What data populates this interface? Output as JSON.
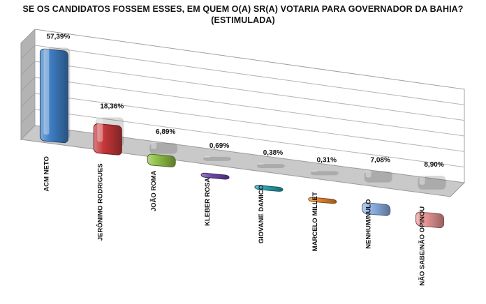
{
  "chart_data": {
    "type": "bar",
    "title": "SE OS CANDIDATOS FOSSEM ESSES, EM QUEM O(A) SR(A) VOTARIA PARA GOVERNADOR DA BAHIA?",
    "subtitle": "(ESTIMULADA)",
    "categories": [
      "ACM NETO",
      "JERÔNIMO RODRIGUES",
      "JOÃO ROMA",
      "KLEBER ROSA",
      "GIOVANE DAMICO",
      "MARCELO MILLET",
      "NENHUM/NULO",
      "NÃO SABE/NÃO OPINOU"
    ],
    "values": [
      57.39,
      18.36,
      6.89,
      0.69,
      0.38,
      0.31,
      7.08,
      8.9
    ],
    "value_labels": [
      "57,39%",
      "18,36%",
      "6,89%",
      "0,69%",
      "0,38%",
      "0,31%",
      "7,08%",
      "8,90%"
    ],
    "colors": [
      "#3f7fc6",
      "#c6373a",
      "#8fbe45",
      "#6c47a8",
      "#2aa3b1",
      "#e8862c",
      "#8fb1e6",
      "#e89595"
    ],
    "ylim": [
      0,
      60
    ],
    "grid": true,
    "legend": "none"
  }
}
